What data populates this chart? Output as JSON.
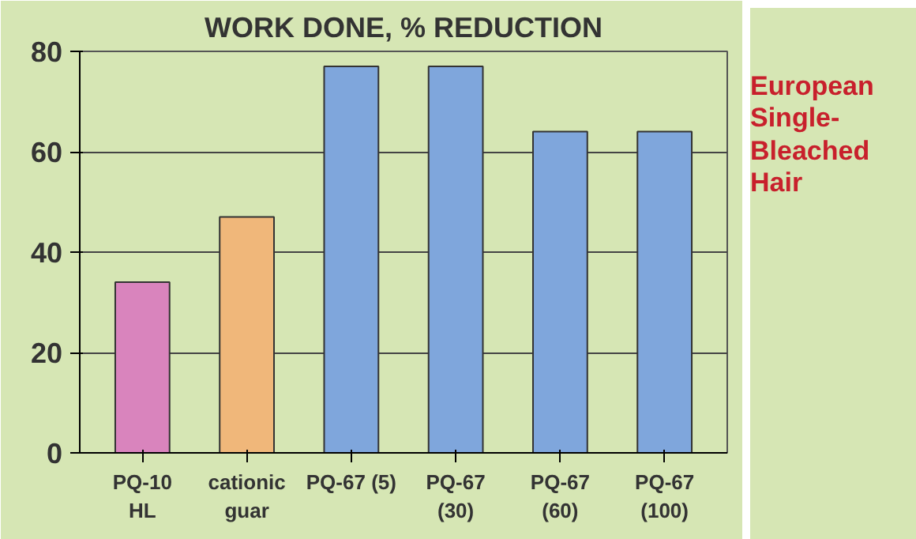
{
  "chart_data": {
    "type": "bar",
    "title": "WORK DONE, % REDUCTION",
    "categories": [
      "PQ-10\nHL",
      "cationic\nguar",
      "PQ-67 (5)",
      "PQ-67\n(30)",
      "PQ-67\n(60)",
      "PQ-67\n(100)"
    ],
    "values": [
      34,
      47,
      77,
      77,
      64,
      64
    ],
    "colors": [
      "#d984bd",
      "#f0b77a",
      "#7fa6dc",
      "#7fa6dc",
      "#7fa6dc",
      "#7fa6dc"
    ],
    "ylim": [
      0,
      80
    ],
    "yticks": [
      0,
      20,
      40,
      60,
      80
    ],
    "grid": "y",
    "annotations": [
      "European\nSingle-\nBleached\nHair"
    ]
  }
}
